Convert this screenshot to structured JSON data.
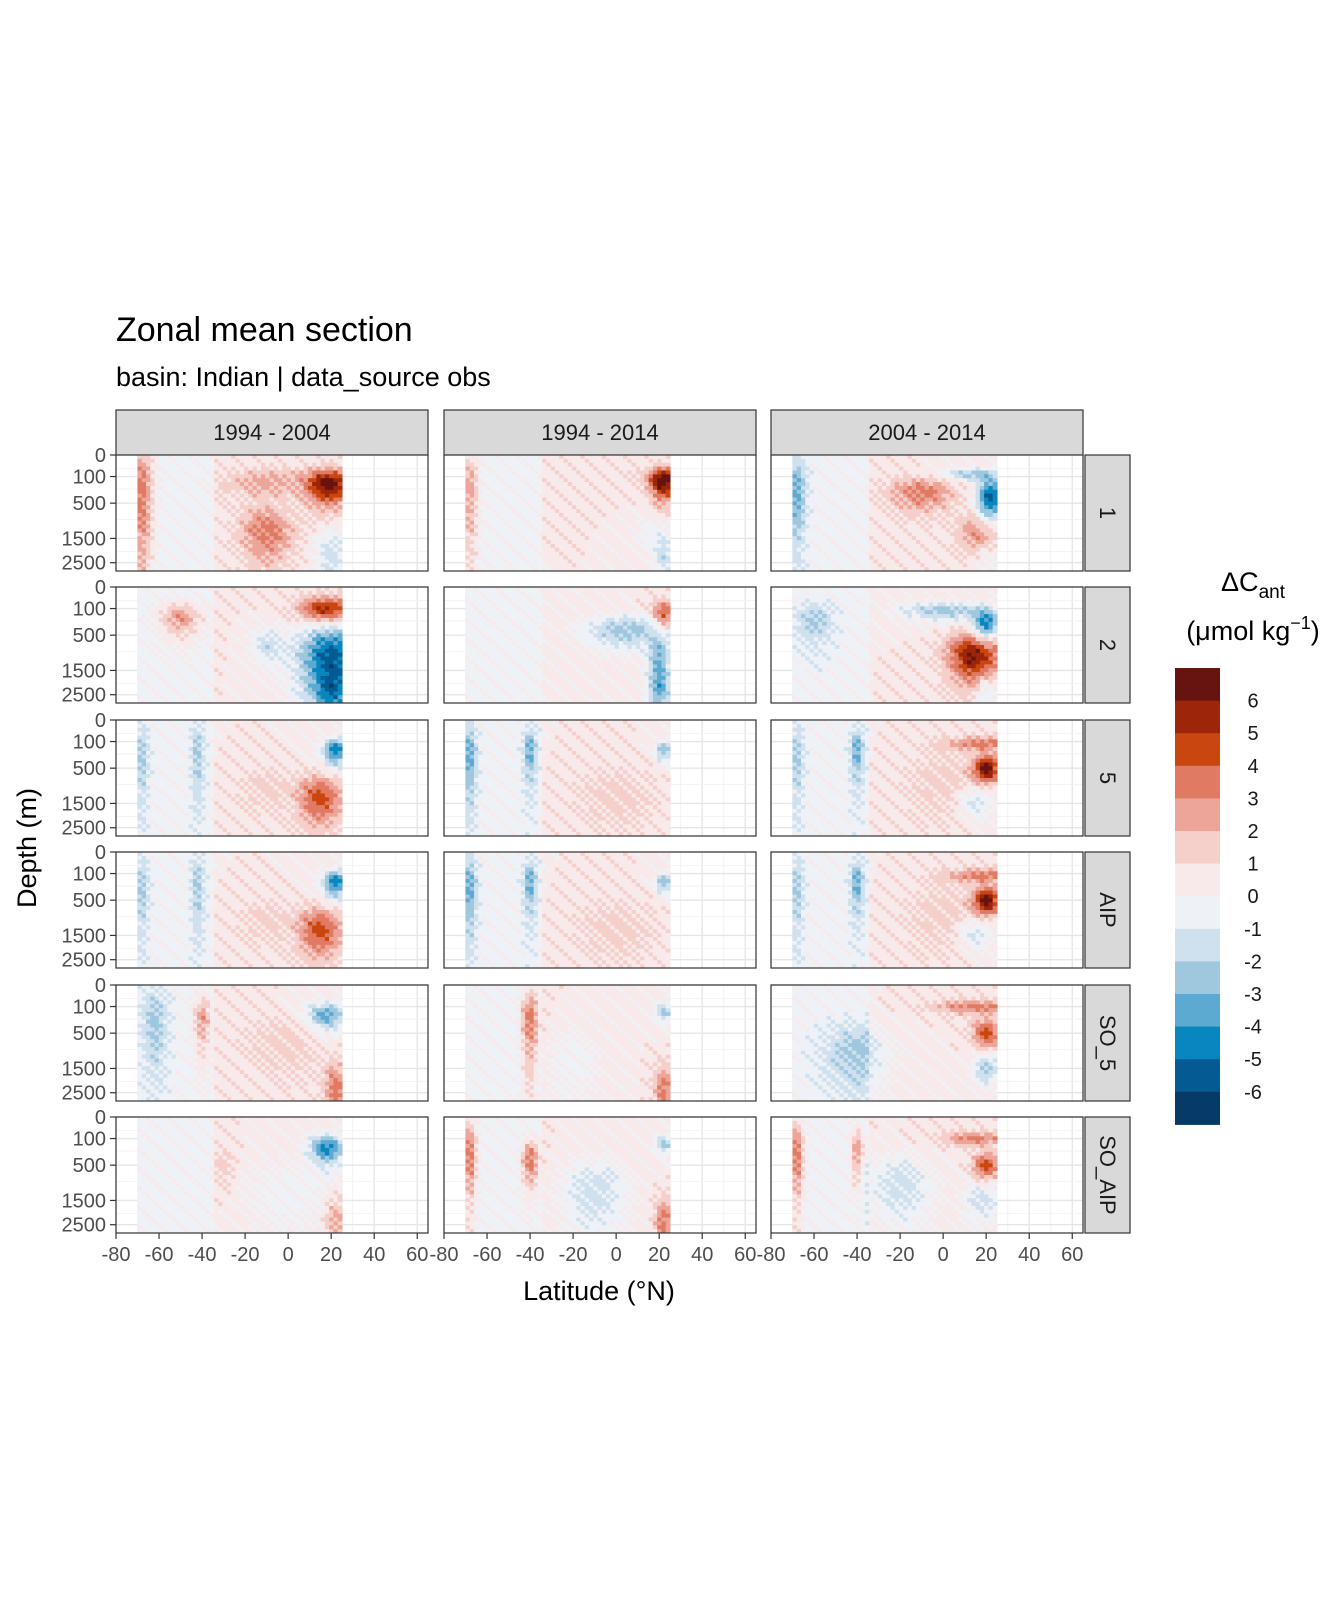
{
  "title": "Zonal mean section",
  "subtitle": "basin: Indian | data_source obs",
  "chart_data": {
    "type": "heatmap",
    "facet_columns": [
      "1994 - 2004",
      "1994 - 2014",
      "2004 - 2014"
    ],
    "facet_rows": [
      "1",
      "2",
      "5",
      "AIP",
      "SO_5",
      "SO_AIP"
    ],
    "xlabel": "Latitude (°N)",
    "ylabel": "Depth (m)",
    "x_ticks": [
      -80,
      -60,
      -40,
      -20,
      0,
      20,
      40,
      60
    ],
    "x_tick_labels": [
      "-80",
      "-60",
      "-40",
      "-20",
      "0",
      "20",
      "40",
      "60"
    ],
    "xlim": [
      -80,
      65
    ],
    "y_ticks": [
      0,
      100,
      500,
      1500,
      2500
    ],
    "y_tick_labels": [
      "0",
      "100",
      "500",
      "1500",
      "2500"
    ],
    "y_reversed": true,
    "data_x_range": [
      -70,
      25
    ],
    "legend": {
      "title_main": "ΔC",
      "title_sub": "ant",
      "unit_prefix": "(μmol kg",
      "unit_sup": "−1",
      "unit_suffix": ")",
      "breaks": [
        "6",
        "5",
        "4",
        "3",
        "2",
        "1",
        "0",
        "-1",
        "-2",
        "-3",
        "-4",
        "-5",
        "-6"
      ],
      "colors": [
        "#67130f",
        "#9c250a",
        "#c9470f",
        "#e07a63",
        "#eca598",
        "#f5cfc9",
        "#f8eaea",
        "#eef2f6",
        "#cfe0ee",
        "#9fc7de",
        "#5ca9d1",
        "#0887be",
        "#045a93",
        "#053b66"
      ]
    },
    "grid": true,
    "panels": [
      {
        "row": "1",
        "col": "1994 - 2004",
        "blobs": [
          [
            -68,
            250,
            5,
            3,
            4
          ],
          [
            -10,
            150,
            20,
            0.9,
            2
          ],
          [
            19,
            180,
            10,
            1,
            6
          ],
          [
            -10,
            1300,
            12,
            0.7,
            3
          ],
          [
            20,
            2200,
            7,
            0.6,
            -2
          ]
        ]
      },
      {
        "row": "1",
        "col": "1994 - 2014",
        "blobs": [
          [
            -68,
            250,
            4,
            2.5,
            3
          ],
          [
            15,
            120,
            12,
            0.6,
            1
          ],
          [
            22,
            150,
            6,
            1,
            6
          ],
          [
            15,
            1400,
            6,
            0.5,
            -1
          ],
          [
            22,
            2200,
            4,
            0.6,
            -2
          ]
        ]
      },
      {
        "row": "1",
        "col": "2004 - 2014",
        "blobs": [
          [
            -68,
            250,
            4,
            2,
            -3
          ],
          [
            -10,
            300,
            15,
            0.8,
            3
          ],
          [
            15,
            80,
            15,
            0.5,
            -3
          ],
          [
            22,
            400,
            6,
            0.9,
            -6
          ],
          [
            18,
            1300,
            10,
            0.5,
            3
          ],
          [
            20,
            2300,
            7,
            0.5,
            -1
          ]
        ]
      },
      {
        "row": "2",
        "col": "1994 - 2004",
        "blobs": [
          [
            -50,
            200,
            10,
            1,
            3
          ],
          [
            18,
            100,
            12,
            0.9,
            5
          ],
          [
            20,
            1100,
            15,
            1.2,
            -6
          ],
          [
            -10,
            700,
            8,
            0.6,
            -2
          ],
          [
            20,
            2500,
            6,
            0.4,
            -2
          ]
        ]
      },
      {
        "row": "2",
        "col": "1994 - 2014",
        "blobs": [
          [
            22,
            150,
            5,
            0.8,
            4
          ],
          [
            5,
            400,
            20,
            0.7,
            -3
          ],
          [
            20,
            1100,
            5,
            0.7,
            -3
          ],
          [
            20,
            2400,
            5,
            0.5,
            -3
          ]
        ]
      },
      {
        "row": "2",
        "col": "2004 - 2014",
        "blobs": [
          [
            0,
            120,
            20,
            0.6,
            -3
          ],
          [
            20,
            300,
            6,
            0.8,
            -5
          ],
          [
            15,
            1000,
            12,
            0.7,
            6
          ],
          [
            -60,
            250,
            8,
            1,
            -2
          ],
          [
            20,
            2300,
            6,
            0.5,
            -2
          ]
        ]
      },
      {
        "row": "5",
        "col": "1994 - 2004",
        "blobs": [
          [
            -68,
            250,
            3,
            2,
            -2
          ],
          [
            -42,
            250,
            3,
            2,
            -2
          ],
          [
            22,
            200,
            6,
            0.8,
            -5
          ],
          [
            15,
            1300,
            10,
            0.6,
            4
          ],
          [
            -10,
            1000,
            12,
            0.6,
            1
          ]
        ]
      },
      {
        "row": "5",
        "col": "1994 - 2014",
        "blobs": [
          [
            -68,
            250,
            3,
            2,
            -3
          ],
          [
            -40,
            180,
            3,
            1.5,
            -3
          ],
          [
            22,
            200,
            4,
            0.6,
            -3
          ],
          [
            0,
            1200,
            18,
            0.8,
            1
          ]
        ]
      },
      {
        "row": "5",
        "col": "2004 - 2014",
        "blobs": [
          [
            -68,
            250,
            3,
            2,
            -2
          ],
          [
            -40,
            180,
            3,
            1.5,
            -3
          ],
          [
            20,
            120,
            20,
            0.5,
            3
          ],
          [
            20,
            500,
            6,
            0.5,
            6
          ],
          [
            15,
            1400,
            8,
            0.4,
            -2
          ],
          [
            0,
            800,
            18,
            1,
            1
          ]
        ]
      },
      {
        "row": "AIP",
        "col": "1994 - 2004",
        "blobs": [
          [
            -68,
            250,
            3,
            2,
            -2
          ],
          [
            -42,
            250,
            3,
            2,
            -2
          ],
          [
            22,
            200,
            6,
            0.8,
            -5
          ],
          [
            15,
            1300,
            10,
            0.6,
            4
          ],
          [
            -10,
            1000,
            12,
            0.6,
            1
          ]
        ]
      },
      {
        "row": "AIP",
        "col": "1994 - 2014",
        "blobs": [
          [
            -68,
            250,
            3,
            2,
            -3
          ],
          [
            -40,
            180,
            3,
            1.5,
            -3
          ],
          [
            22,
            200,
            4,
            0.6,
            -3
          ],
          [
            0,
            1200,
            18,
            0.8,
            1
          ]
        ]
      },
      {
        "row": "AIP",
        "col": "2004 - 2014",
        "blobs": [
          [
            -68,
            250,
            3,
            2,
            -2
          ],
          [
            -40,
            180,
            3,
            1.5,
            -3
          ],
          [
            20,
            120,
            20,
            0.5,
            3
          ],
          [
            20,
            500,
            6,
            0.5,
            6
          ],
          [
            15,
            1400,
            8,
            0.4,
            -2
          ],
          [
            0,
            800,
            18,
            1,
            1
          ]
        ]
      },
      {
        "row": "SO_5",
        "col": "1994 - 2004",
        "blobs": [
          [
            -62,
            250,
            6,
            2,
            -2
          ],
          [
            -40,
            250,
            4,
            1.5,
            3
          ],
          [
            18,
            200,
            10,
            0.8,
            -4
          ],
          [
            22,
            2300,
            5,
            0.5,
            3
          ],
          [
            0,
            700,
            20,
            1,
            1
          ]
        ]
      },
      {
        "row": "SO_5",
        "col": "1994 - 2014",
        "blobs": [
          [
            -40,
            250,
            4,
            2,
            4
          ],
          [
            -20,
            1200,
            12,
            1,
            -1
          ],
          [
            22,
            150,
            4,
            0.6,
            -3
          ],
          [
            22,
            2300,
            4,
            0.5,
            3
          ]
        ]
      },
      {
        "row": "SO_5",
        "col": "2004 - 2014",
        "blobs": [
          [
            -40,
            1000,
            15,
            1,
            -2
          ],
          [
            15,
            100,
            18,
            0.5,
            3
          ],
          [
            20,
            500,
            6,
            0.6,
            4
          ],
          [
            20,
            1400,
            6,
            0.4,
            -3
          ]
        ]
      },
      {
        "row": "SO_AIP",
        "col": "1994 - 2004",
        "blobs": [
          [
            18,
            200,
            8,
            0.8,
            -5
          ],
          [
            -30,
            500,
            5,
            0.8,
            1
          ],
          [
            22,
            2300,
            5,
            0.5,
            2
          ],
          [
            0,
            1200,
            20,
            1,
            -1
          ]
        ]
      },
      {
        "row": "SO_AIP",
        "col": "1994 - 2014",
        "blobs": [
          [
            -68,
            250,
            3,
            2,
            4
          ],
          [
            -40,
            400,
            4,
            1,
            4
          ],
          [
            -10,
            1200,
            15,
            1,
            -2
          ],
          [
            22,
            150,
            4,
            0.6,
            -3
          ],
          [
            22,
            2300,
            4,
            0.5,
            3
          ]
        ]
      },
      {
        "row": "SO_AIP",
        "col": "2004 - 2014",
        "blobs": [
          [
            -68,
            250,
            3,
            2,
            4
          ],
          [
            -40,
            250,
            3,
            1.5,
            3
          ],
          [
            -20,
            1000,
            15,
            1,
            -2
          ],
          [
            15,
            100,
            15,
            0.5,
            3
          ],
          [
            20,
            500,
            6,
            0.5,
            4
          ],
          [
            18,
            1500,
            8,
            0.5,
            -2
          ]
        ]
      }
    ]
  }
}
